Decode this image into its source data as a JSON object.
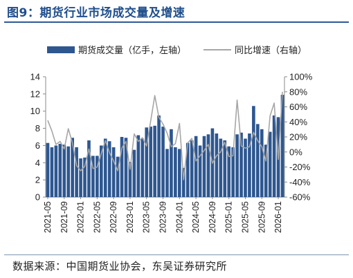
{
  "figure": {
    "title": "图9：期货行业市场成交量及增速",
    "source": "数据来源：中国期货业协会，东吴证券研究所"
  },
  "colors": {
    "bar": "#2e5790",
    "line": "#a6a6a6",
    "title": "#1f4e8c"
  },
  "chart_data": {
    "type": "bar",
    "legend_position": "top",
    "grid": false,
    "x_tick_labels": [
      "2021-05",
      "2021-09",
      "2022-01",
      "2022-05",
      "2022-09",
      "2023-01",
      "2023-05",
      "2023-09",
      "2024-01",
      "2024-05",
      "2024-09",
      "2025-01",
      "2025-05",
      "2025-09",
      "2026-01"
    ],
    "y_left": {
      "ylim": [
        0,
        14
      ],
      "ticks": [
        "0",
        "2",
        "4",
        "6",
        "8",
        "10",
        "12",
        "14"
      ]
    },
    "y_right": {
      "ylim": [
        -60,
        100
      ],
      "ticks": [
        "-60%",
        "-40%",
        "-20%",
        "0%",
        "20%",
        "40%",
        "60%",
        "80%",
        "100%"
      ]
    },
    "categories": [
      "2021-05",
      "2021-06",
      "2021-07",
      "2021-08",
      "2021-09",
      "2021-10",
      "2021-11",
      "2021-12",
      "2022-01",
      "2022-02",
      "2022-03",
      "2022-04",
      "2022-05",
      "2022-06",
      "2022-07",
      "2022-08",
      "2022-09",
      "2022-10",
      "2022-11",
      "2022-12",
      "2023-01",
      "2023-02",
      "2023-03",
      "2023-04",
      "2023-05",
      "2023-06",
      "2023-07",
      "2023-08",
      "2023-09",
      "2023-10",
      "2023-11",
      "2023-12",
      "2024-01",
      "2024-02",
      "2024-03",
      "2024-04",
      "2024-05",
      "2024-06",
      "2024-07",
      "2024-08",
      "2024-09",
      "2024-10",
      "2024-11",
      "2024-12",
      "2025-01",
      "2025-02",
      "2025-03",
      "2025-04",
      "2025-05",
      "2025-06",
      "2025-07",
      "2025-08",
      "2025-09",
      "2025-10",
      "2025-11",
      "2025-12",
      "2026-01",
      "2026-02"
    ],
    "series": [
      {
        "name": "期货成交量（亿手，左轴）",
        "axis": "left",
        "values": [
          6.3,
          5.8,
          6.0,
          6.2,
          6.1,
          5.9,
          6.9,
          5.8,
          4.5,
          4.6,
          6.6,
          4.8,
          4.8,
          6.0,
          6.8,
          6.5,
          5.8,
          4.7,
          7.0,
          6.9,
          4.1,
          5.5,
          7.2,
          6.8,
          8.1,
          8.2,
          8.3,
          9.5,
          8.2,
          5.6,
          7.9,
          5.8,
          5.6,
          3.4,
          6.3,
          6.6,
          7.1,
          6.0,
          7.1,
          7.3,
          8.0,
          7.4,
          6.8,
          6.6,
          5.9,
          5.8,
          7.3,
          7.5,
          6.8,
          7.4,
          10.6,
          8.5,
          7.9,
          6.1,
          7.6,
          9.5,
          9.3,
          11.9
        ]
      },
      {
        "name": "同比增速（右轴）",
        "axis": "right",
        "values": [
          42,
          28,
          10,
          14,
          4,
          31,
          12,
          -18,
          -25,
          -19,
          4,
          -22,
          -20,
          -2,
          15,
          -1,
          -12,
          -25,
          5,
          14,
          -23,
          24,
          14,
          19,
          8,
          41,
          75,
          46,
          37,
          25,
          7,
          11,
          38,
          -37,
          12,
          18,
          -12,
          -5,
          2,
          10,
          -15,
          -5,
          0,
          13,
          -6,
          -5,
          69,
          8,
          5,
          7,
          26,
          15,
          7,
          -12,
          48,
          65,
          -10,
          80
        ]
      }
    ]
  }
}
